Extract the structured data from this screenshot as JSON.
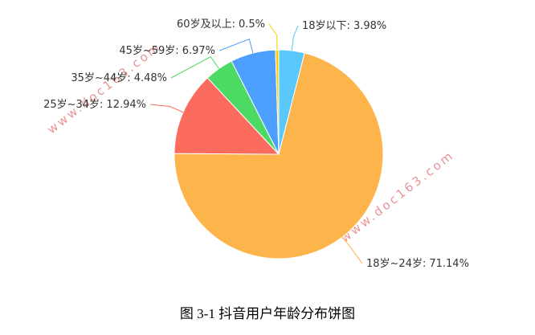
{
  "chart_data": {
    "type": "pie",
    "title": "图 3-1 抖音用户年龄分布饼图",
    "watermark": "www.doc163.com",
    "categories": [
      "18岁以下:",
      "18岁~24岁:",
      "25岁~34岁:",
      "35岁~44岁:",
      "45岁~59岁:",
      "60岁及以上:"
    ],
    "values": [
      3.98,
      71.14,
      12.94,
      4.48,
      6.97,
      0.5
    ],
    "value_labels": [
      "3.98%",
      "71.14%",
      "12.94%",
      "4.48%",
      "6.97%",
      "0.5%"
    ],
    "colors": [
      "#5ac8fa",
      "#fdb44b",
      "#fb6c5e",
      "#4cd964",
      "#4c9ffe",
      "#ffcc00"
    ]
  }
}
